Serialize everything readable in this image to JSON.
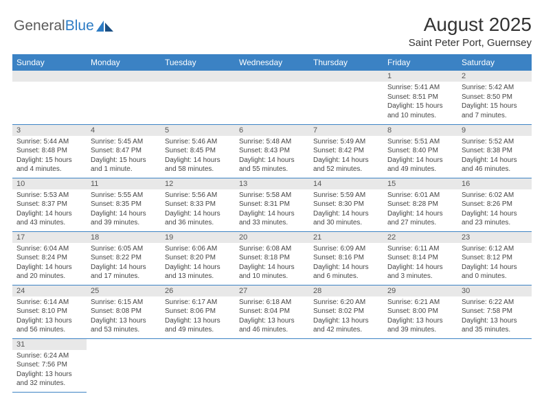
{
  "logo": {
    "text1": "General",
    "text2": "Blue"
  },
  "header": {
    "title": "August 2025",
    "location": "Saint Peter Port, Guernsey"
  },
  "colors": {
    "headerBar": "#3b82c4",
    "headerText": "#ffffff",
    "dayNumBg": "#e8e8e8",
    "ruleLine": "#3b82c4",
    "bodyText": "#444444",
    "logoBlue": "#2c7bc4",
    "logoGray": "#5a5a5a"
  },
  "dayNames": [
    "Sunday",
    "Monday",
    "Tuesday",
    "Wednesday",
    "Thursday",
    "Friday",
    "Saturday"
  ],
  "weeks": [
    [
      null,
      null,
      null,
      null,
      null,
      {
        "n": "1",
        "sunrise": "5:41 AM",
        "sunset": "8:51 PM",
        "daylight": "15 hours and 10 minutes."
      },
      {
        "n": "2",
        "sunrise": "5:42 AM",
        "sunset": "8:50 PM",
        "daylight": "15 hours and 7 minutes."
      }
    ],
    [
      {
        "n": "3",
        "sunrise": "5:44 AM",
        "sunset": "8:48 PM",
        "daylight": "15 hours and 4 minutes."
      },
      {
        "n": "4",
        "sunrise": "5:45 AM",
        "sunset": "8:47 PM",
        "daylight": "15 hours and 1 minute."
      },
      {
        "n": "5",
        "sunrise": "5:46 AM",
        "sunset": "8:45 PM",
        "daylight": "14 hours and 58 minutes."
      },
      {
        "n": "6",
        "sunrise": "5:48 AM",
        "sunset": "8:43 PM",
        "daylight": "14 hours and 55 minutes."
      },
      {
        "n": "7",
        "sunrise": "5:49 AM",
        "sunset": "8:42 PM",
        "daylight": "14 hours and 52 minutes."
      },
      {
        "n": "8",
        "sunrise": "5:51 AM",
        "sunset": "8:40 PM",
        "daylight": "14 hours and 49 minutes."
      },
      {
        "n": "9",
        "sunrise": "5:52 AM",
        "sunset": "8:38 PM",
        "daylight": "14 hours and 46 minutes."
      }
    ],
    [
      {
        "n": "10",
        "sunrise": "5:53 AM",
        "sunset": "8:37 PM",
        "daylight": "14 hours and 43 minutes."
      },
      {
        "n": "11",
        "sunrise": "5:55 AM",
        "sunset": "8:35 PM",
        "daylight": "14 hours and 39 minutes."
      },
      {
        "n": "12",
        "sunrise": "5:56 AM",
        "sunset": "8:33 PM",
        "daylight": "14 hours and 36 minutes."
      },
      {
        "n": "13",
        "sunrise": "5:58 AM",
        "sunset": "8:31 PM",
        "daylight": "14 hours and 33 minutes."
      },
      {
        "n": "14",
        "sunrise": "5:59 AM",
        "sunset": "8:30 PM",
        "daylight": "14 hours and 30 minutes."
      },
      {
        "n": "15",
        "sunrise": "6:01 AM",
        "sunset": "8:28 PM",
        "daylight": "14 hours and 27 minutes."
      },
      {
        "n": "16",
        "sunrise": "6:02 AM",
        "sunset": "8:26 PM",
        "daylight": "14 hours and 23 minutes."
      }
    ],
    [
      {
        "n": "17",
        "sunrise": "6:04 AM",
        "sunset": "8:24 PM",
        "daylight": "14 hours and 20 minutes."
      },
      {
        "n": "18",
        "sunrise": "6:05 AM",
        "sunset": "8:22 PM",
        "daylight": "14 hours and 17 minutes."
      },
      {
        "n": "19",
        "sunrise": "6:06 AM",
        "sunset": "8:20 PM",
        "daylight": "14 hours and 13 minutes."
      },
      {
        "n": "20",
        "sunrise": "6:08 AM",
        "sunset": "8:18 PM",
        "daylight": "14 hours and 10 minutes."
      },
      {
        "n": "21",
        "sunrise": "6:09 AM",
        "sunset": "8:16 PM",
        "daylight": "14 hours and 6 minutes."
      },
      {
        "n": "22",
        "sunrise": "6:11 AM",
        "sunset": "8:14 PM",
        "daylight": "14 hours and 3 minutes."
      },
      {
        "n": "23",
        "sunrise": "6:12 AM",
        "sunset": "8:12 PM",
        "daylight": "14 hours and 0 minutes."
      }
    ],
    [
      {
        "n": "24",
        "sunrise": "6:14 AM",
        "sunset": "8:10 PM",
        "daylight": "13 hours and 56 minutes."
      },
      {
        "n": "25",
        "sunrise": "6:15 AM",
        "sunset": "8:08 PM",
        "daylight": "13 hours and 53 minutes."
      },
      {
        "n": "26",
        "sunrise": "6:17 AM",
        "sunset": "8:06 PM",
        "daylight": "13 hours and 49 minutes."
      },
      {
        "n": "27",
        "sunrise": "6:18 AM",
        "sunset": "8:04 PM",
        "daylight": "13 hours and 46 minutes."
      },
      {
        "n": "28",
        "sunrise": "6:20 AM",
        "sunset": "8:02 PM",
        "daylight": "13 hours and 42 minutes."
      },
      {
        "n": "29",
        "sunrise": "6:21 AM",
        "sunset": "8:00 PM",
        "daylight": "13 hours and 39 minutes."
      },
      {
        "n": "30",
        "sunrise": "6:22 AM",
        "sunset": "7:58 PM",
        "daylight": "13 hours and 35 minutes."
      }
    ],
    [
      {
        "n": "31",
        "sunrise": "6:24 AM",
        "sunset": "7:56 PM",
        "daylight": "13 hours and 32 minutes."
      },
      null,
      null,
      null,
      null,
      null,
      null
    ]
  ],
  "labels": {
    "sunrise": "Sunrise:",
    "sunset": "Sunset:",
    "daylight": "Daylight:"
  }
}
